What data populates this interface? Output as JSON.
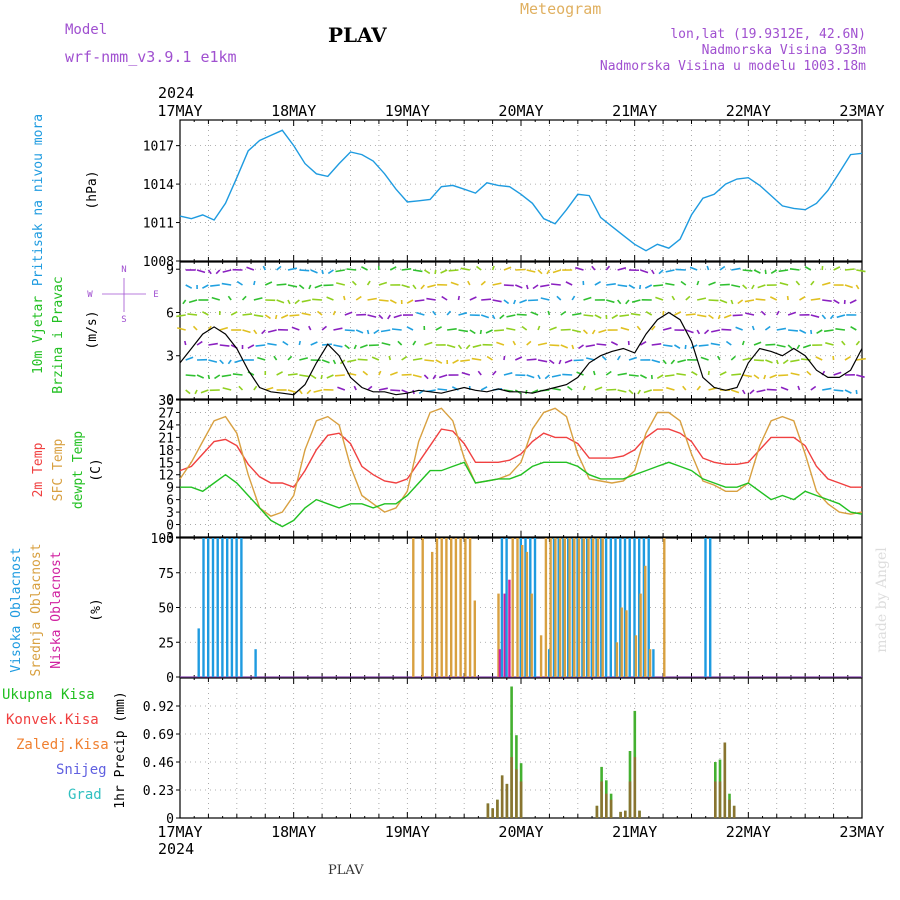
{
  "header": {
    "model_label": "Model",
    "model_name": "wrf-nmm_v3.9.1 e1km",
    "station": "PLAV",
    "meteogram": "Meteogram",
    "lonlat": "lon,lat (19.9312E, 42.6N)",
    "altitude": "Nadmorska Visina 933m",
    "model_altitude": "Nadmorska Visina u modelu 1003.18m"
  },
  "footer": {
    "station": "PLAV",
    "credit": "made by Angel"
  },
  "colors": {
    "pressure": "#1e9be0",
    "temp2m": "#f04040",
    "sfc_temp": "#d8a040",
    "dewpt": "#22c022",
    "wind_speed": "#000000",
    "gust_marker": "#ff5050",
    "cloud_high": "#1e9be0",
    "cloud_mid": "#d8a040",
    "cloud_low": "#d020a0",
    "precip_total": "#44b030",
    "precip_conv": "#f04040",
    "precip_frozen": "#f08030",
    "snow": "#6060e0",
    "hail": "#30c0c0",
    "label_purple": "#a050d0",
    "label_orange": "#e0b060"
  },
  "x_axis": {
    "year": "2024",
    "ticks": [
      "17MAY",
      "18MAY",
      "19MAY",
      "20MAY",
      "21MAY",
      "22MAY",
      "23MAY"
    ]
  },
  "chart_data": [
    {
      "type": "line",
      "title": "",
      "ylabel": "Pritisak na nivou mora",
      "units": "(hPa)",
      "ylim": [
        1008,
        1019
      ],
      "yticks": [
        "1008",
        "1011",
        "1014",
        "1017"
      ],
      "x_days": [
        0,
        0.1,
        0.2,
        0.3,
        0.4,
        0.5,
        0.6,
        0.7,
        0.8,
        0.9,
        1.0,
        1.1,
        1.2,
        1.3,
        1.4,
        1.5,
        1.6,
        1.7,
        1.8,
        1.9,
        2.0,
        2.1,
        2.2,
        2.3,
        2.4,
        2.5,
        2.6,
        2.7,
        2.8,
        2.9,
        3.0,
        3.1,
        3.2,
        3.3,
        3.4,
        3.5,
        3.6,
        3.7,
        3.8,
        3.9,
        4.0,
        4.1,
        4.2,
        4.3,
        4.4,
        4.5,
        4.6,
        4.7,
        4.8,
        4.9,
        5.0,
        5.1,
        5.2,
        5.3,
        5.4,
        5.5,
        5.6,
        5.7,
        5.8,
        5.9,
        6.0
      ],
      "series": [
        {
          "name": "",
          "values": [
            1011.5,
            1011.3,
            1011.6,
            1011.2,
            1012.5,
            1014.5,
            1016.6,
            1017.4,
            1017.8,
            1018.2,
            1017.0,
            1015.6,
            1014.8,
            1014.6,
            1015.6,
            1016.5,
            1016.3,
            1015.8,
            1014.8,
            1013.6,
            1012.6,
            1012.7,
            1012.8,
            1013.8,
            1013.9,
            1013.6,
            1013.3,
            1014.1,
            1013.9,
            1013.8,
            1013.2,
            1012.5,
            1011.3,
            1010.9,
            1012.0,
            1013.2,
            1013.1,
            1011.4,
            1010.7,
            1010.0,
            1009.3,
            1008.8,
            1009.3,
            1009.0,
            1009.7,
            1011.6,
            1012.9,
            1013.2,
            1014.0,
            1014.4,
            1014.5,
            1013.9,
            1013.1,
            1012.3,
            1012.1,
            1012.0,
            1012.5,
            1013.5,
            1014.9,
            1016.3,
            1016.4
          ]
        }
      ]
    },
    {
      "type": "line",
      "title": "",
      "ylabel": "10m Vjetar Brzina i Pravac",
      "units": "(m/s)",
      "ylim": [
        0,
        9.5
      ],
      "yticks": [
        "0",
        "3",
        "6",
        "9"
      ],
      "compass": {
        "north": "N",
        "south": "S",
        "west": "W",
        "east": "E"
      },
      "x_days": [
        0,
        0.1,
        0.2,
        0.3,
        0.4,
        0.5,
        0.6,
        0.7,
        0.8,
        0.9,
        1.0,
        1.1,
        1.2,
        1.3,
        1.4,
        1.5,
        1.6,
        1.7,
        1.8,
        1.9,
        2.0,
        2.1,
        2.2,
        2.3,
        2.4,
        2.5,
        2.6,
        2.7,
        2.8,
        2.9,
        3.0,
        3.1,
        3.2,
        3.3,
        3.4,
        3.5,
        3.6,
        3.7,
        3.8,
        3.9,
        4.0,
        4.1,
        4.2,
        4.3,
        4.4,
        4.5,
        4.6,
        4.7,
        4.8,
        4.9,
        5.0,
        5.1,
        5.2,
        5.3,
        5.4,
        5.5,
        5.6,
        5.7,
        5.8,
        5.9,
        6.0
      ],
      "series": [
        {
          "name": "",
          "values": [
            2.5,
            3.5,
            4.5,
            5.0,
            4.5,
            3.5,
            2.0,
            0.8,
            0.5,
            0.4,
            0.3,
            1.0,
            2.5,
            3.8,
            3.0,
            1.5,
            0.8,
            0.5,
            0.5,
            0.3,
            0.4,
            0.6,
            0.5,
            0.4,
            0.6,
            0.8,
            0.6,
            0.5,
            0.7,
            0.5,
            0.5,
            0.4,
            0.6,
            0.8,
            1.0,
            1.5,
            2.5,
            3.0,
            3.3,
            3.5,
            3.2,
            4.5,
            5.5,
            6.0,
            5.5,
            4.0,
            1.5,
            0.8,
            0.6,
            0.8,
            2.5,
            3.5,
            3.3,
            3.0,
            3.5,
            3.0,
            2.0,
            1.5,
            1.5,
            2.0,
            3.5
          ]
        }
      ]
    },
    {
      "type": "line",
      "title": "",
      "ylabel": "2m Temp SFC Temp dewpt Temp",
      "units": "(C)",
      "ylim": [
        -3,
        30
      ],
      "yticks": [
        "-3",
        "0",
        "3",
        "6",
        "9",
        "12",
        "15",
        "18",
        "21",
        "24",
        "27",
        "30"
      ],
      "x_days": [
        0,
        0.1,
        0.2,
        0.3,
        0.4,
        0.5,
        0.6,
        0.7,
        0.8,
        0.9,
        1.0,
        1.1,
        1.2,
        1.3,
        1.4,
        1.5,
        1.6,
        1.7,
        1.8,
        1.9,
        2.0,
        2.1,
        2.2,
        2.3,
        2.4,
        2.5,
        2.6,
        2.7,
        2.8,
        2.9,
        3.0,
        3.1,
        3.2,
        3.3,
        3.4,
        3.5,
        3.6,
        3.7,
        3.8,
        3.9,
        4.0,
        4.1,
        4.2,
        4.3,
        4.4,
        4.5,
        4.6,
        4.7,
        4.8,
        4.9,
        5.0,
        5.1,
        5.2,
        5.3,
        5.4,
        5.5,
        5.6,
        5.7,
        5.8,
        5.9,
        6.0
      ],
      "series": [
        {
          "name": "2m Temp",
          "values": [
            13,
            14,
            17,
            20,
            20.5,
            19,
            14.5,
            11.5,
            10,
            10,
            9,
            13,
            18,
            21.5,
            22,
            19.5,
            14,
            12,
            10.5,
            10,
            11,
            15,
            19,
            23,
            22.5,
            19.5,
            15,
            15,
            15,
            15.5,
            17,
            20,
            22,
            21,
            21,
            19.5,
            16,
            16,
            16,
            16.5,
            18,
            21,
            23,
            23,
            22,
            20,
            16,
            15,
            14.5,
            14.5,
            15,
            18,
            21,
            21,
            21,
            19,
            14,
            11,
            10,
            9,
            9
          ]
        },
        {
          "name": "SFC Temp",
          "values": [
            11,
            15,
            20,
            25,
            26,
            22,
            12,
            4,
            2,
            3,
            7,
            18,
            25,
            26,
            24,
            14,
            7,
            5,
            3,
            4,
            8,
            20,
            27,
            28,
            25,
            16,
            10,
            10.5,
            11,
            12,
            15,
            23,
            27,
            28,
            26,
            17,
            11,
            10.5,
            10,
            10.5,
            13,
            22,
            27,
            27,
            25,
            17,
            10.5,
            9.5,
            8,
            8,
            10,
            19,
            25,
            26,
            25,
            17,
            8,
            5,
            3,
            2.5,
            3
          ]
        },
        {
          "name": "dewpt Temp",
          "values": [
            9,
            9,
            8,
            10,
            12,
            10,
            7,
            4,
            1,
            -0.5,
            1,
            4,
            6,
            5,
            4,
            5,
            5,
            4,
            5,
            5,
            7,
            10,
            13,
            13,
            14,
            15,
            10,
            10.5,
            11,
            11,
            12,
            14,
            15,
            15,
            15,
            14,
            12,
            11,
            11,
            11,
            12,
            13,
            14,
            15,
            14,
            13,
            11,
            10,
            9,
            9,
            10,
            8,
            6,
            7,
            6,
            8,
            7,
            6,
            5,
            3,
            2.5
          ]
        }
      ]
    },
    {
      "type": "bar",
      "title": "",
      "ylabel": "Visoka Oblacnost Srednja Oblacnost Niska Oblacnost",
      "units": "(%)",
      "ylim": [
        0,
        100
      ],
      "yticks": [
        "0",
        "25",
        "50",
        "75",
        "100"
      ],
      "bar_hours": [
        4,
        5,
        6,
        7,
        8,
        9,
        10,
        11,
        12,
        13,
        16,
        49,
        51,
        52,
        53,
        54,
        55,
        56,
        57,
        58,
        59,
        60,
        61,
        62,
        65,
        67,
        68,
        69,
        70,
        71,
        72,
        73,
        74,
        75,
        76,
        77,
        78,
        79,
        80,
        81,
        82,
        83,
        84,
        85,
        86,
        87,
        88,
        89,
        90,
        91,
        92,
        93,
        94,
        95,
        96,
        97,
        98,
        99,
        100,
        101,
        102,
        103,
        104,
        105,
        106,
        107,
        108,
        109,
        110,
        111,
        112,
        123,
        124,
        125,
        126,
        127,
        128,
        129,
        130,
        131,
        132,
        133,
        134,
        135,
        136,
        137,
        138,
        139,
        140,
        141,
        142,
        143,
        144
      ],
      "series": [
        {
          "name": "Visoka Oblacnost",
          "values": [
            35,
            100,
            100,
            100,
            100,
            100,
            100,
            100,
            100,
            100,
            20,
            0,
            0,
            0,
            0,
            0,
            0,
            0,
            0,
            0,
            0,
            0,
            0,
            0,
            0,
            0,
            100,
            100,
            0,
            0,
            100,
            100,
            100,
            100,
            0,
            0,
            20,
            100,
            100,
            100,
            100,
            100,
            100,
            100,
            100,
            100,
            100,
            100,
            100,
            100,
            100,
            100,
            100,
            100,
            100,
            100,
            100,
            100,
            20,
            0,
            0,
            0,
            0,
            0,
            0,
            0,
            0,
            0,
            0,
            100,
            100,
            0,
            0,
            0,
            0,
            0,
            0,
            0,
            0,
            0,
            0,
            0,
            0,
            0,
            0,
            0,
            0,
            0,
            0,
            0,
            0,
            0,
            0,
            0,
            0,
            0,
            0
          ]
        },
        {
          "name": "Srednja Oblacnost",
          "values": [
            0,
            0,
            0,
            0,
            0,
            0,
            0,
            0,
            0,
            0,
            0,
            100,
            100,
            0,
            90,
            100,
            100,
            100,
            100,
            100,
            100,
            100,
            100,
            55,
            0,
            60,
            0,
            0,
            100,
            100,
            95,
            90,
            60,
            0,
            30,
            100,
            100,
            100,
            100,
            100,
            100,
            100,
            100,
            100,
            100,
            100,
            100,
            100,
            0,
            0,
            25,
            50,
            48,
            0,
            30,
            60,
            80,
            20,
            0,
            0,
            100,
            0,
            0,
            0,
            0,
            0,
            0,
            0,
            0,
            0,
            0,
            0,
            0,
            0,
            0,
            0,
            0,
            0,
            0,
            0,
            0,
            0,
            0,
            0,
            0,
            0,
            0,
            0,
            0,
            0,
            0,
            0,
            0
          ]
        },
        {
          "name": "Niska Oblacnost",
          "values": [
            0,
            0,
            0,
            0,
            0,
            0,
            0,
            0,
            0,
            0,
            0,
            0,
            0,
            0,
            0,
            0,
            0,
            0,
            0,
            0,
            0,
            0,
            0,
            0,
            0,
            20,
            60,
            70,
            0,
            0,
            0,
            0,
            0,
            0,
            0,
            0,
            0,
            0,
            0,
            0,
            0,
            0,
            0,
            0,
            0,
            0,
            0,
            0,
            0,
            0,
            0,
            0,
            0,
            0,
            0,
            0,
            0,
            0,
            0,
            0,
            0,
            0,
            0,
            0,
            0,
            0,
            0,
            0,
            0,
            0,
            0,
            0,
            0,
            0,
            0,
            0,
            0,
            0,
            0,
            0,
            0,
            0,
            0,
            0,
            0,
            0,
            0,
            0,
            0,
            0,
            0,
            0,
            0
          ]
        }
      ]
    },
    {
      "type": "bar",
      "title": "",
      "ylabel": "1hr Precip (mm)",
      "ylim": [
        0,
        1.15
      ],
      "yticks": [
        "0",
        "0.23",
        "0.46",
        "0.69",
        "0.92"
      ],
      "legend": [
        "Ukupna Kisa",
        "Konvek.Kisa",
        "Zaledj.Kisa",
        "Snijeg",
        "Grad"
      ],
      "bar_hours": [
        65,
        66,
        67,
        68,
        69,
        70,
        71,
        72,
        88,
        89,
        90,
        91,
        92,
        93,
        94,
        95,
        96,
        97,
        98,
        99,
        100,
        101,
        113,
        114,
        115,
        116,
        117,
        118
      ],
      "series": [
        {
          "name": "Ukupna Kisa",
          "values": [
            0.12,
            0.08,
            0.15,
            0.35,
            0.28,
            1.08,
            0.68,
            0.45,
            0.1,
            0.42,
            0.31,
            0.2,
            0,
            0.05,
            0.06,
            0.55,
            0.88,
            0.06,
            0,
            0,
            0,
            0,
            0.46,
            0.48,
            0.62,
            0.2,
            0.1,
            0
          ]
        },
        {
          "name": "Konvek.Kisa",
          "values": [
            0.12,
            0.08,
            0.15,
            0.35,
            0.28,
            0.5,
            0.4,
            0.3,
            0.1,
            0.3,
            0.2,
            0.15,
            0,
            0.05,
            0.06,
            0.3,
            0.5,
            0.06,
            0,
            0,
            0,
            0,
            0.3,
            0.3,
            0.62,
            0.15,
            0.1,
            0
          ]
        }
      ]
    }
  ]
}
